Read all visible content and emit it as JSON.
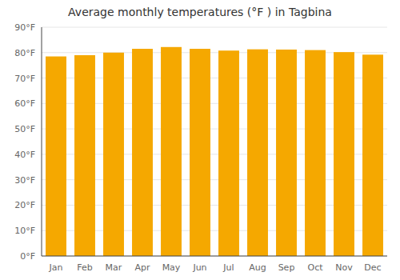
{
  "chart_data": {
    "type": "bar",
    "title": "Average monthly temperatures (°F ) in Tagbina",
    "categories": [
      "Jan",
      "Feb",
      "Mar",
      "Apr",
      "May",
      "Jun",
      "Jul",
      "Aug",
      "Sep",
      "Oct",
      "Nov",
      "Dec"
    ],
    "values": [
      78.5,
      79.0,
      80.0,
      81.5,
      82.2,
      81.5,
      80.8,
      81.3,
      81.2,
      81.0,
      80.2,
      79.2
    ],
    "color": "#F5A800",
    "ylim": [
      0,
      90
    ],
    "yticks": [
      {
        "value": 0,
        "label": "0°F"
      },
      {
        "value": 10,
        "label": "10°F"
      },
      {
        "value": 20,
        "label": "20°F"
      },
      {
        "value": 30,
        "label": "30°F"
      },
      {
        "value": 40,
        "label": "40°F"
      },
      {
        "value": 50,
        "label": "50°F"
      },
      {
        "value": 60,
        "label": "60°F"
      },
      {
        "value": 70,
        "label": "70°F"
      },
      {
        "value": 80,
        "label": "80°F"
      },
      {
        "value": 90,
        "label": "90°F"
      }
    ],
    "grid": true
  }
}
